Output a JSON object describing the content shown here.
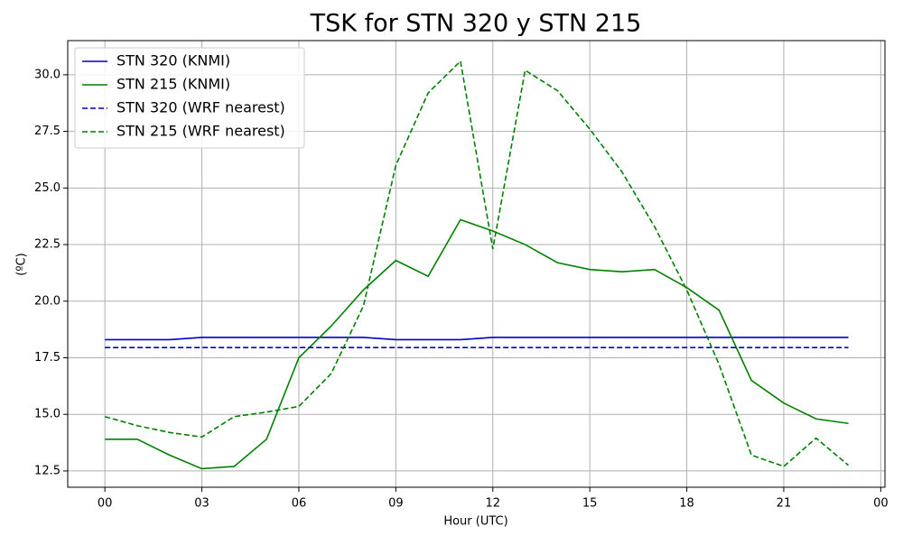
{
  "chart_data": {
    "type": "line",
    "title": "TSK for STN 320 y STN 215",
    "xlabel": "Hour (UTC)",
    "ylabel": "(ºC)",
    "x": [
      0,
      1,
      2,
      3,
      4,
      5,
      6,
      7,
      8,
      9,
      10,
      11,
      12,
      13,
      14,
      15,
      16,
      17,
      18,
      19,
      20,
      21,
      22,
      23
    ],
    "series": [
      {
        "name": "STN 320 (KNMI)",
        "color": "#0000cc",
        "linestyle": "solid",
        "values": [
          18.3,
          18.3,
          18.3,
          18.4,
          18.4,
          18.4,
          18.4,
          18.4,
          18.4,
          18.3,
          18.3,
          18.3,
          18.4,
          18.4,
          18.4,
          18.4,
          18.4,
          18.4,
          18.4,
          18.4,
          18.4,
          18.4,
          18.4,
          18.4
        ]
      },
      {
        "name": "STN 215 (KNMI)",
        "color": "#008000",
        "linestyle": "solid",
        "values": [
          13.9,
          13.9,
          13.2,
          12.6,
          12.7,
          13.9,
          17.5,
          18.9,
          20.5,
          21.8,
          21.1,
          23.6,
          23.1,
          22.5,
          21.7,
          21.4,
          21.3,
          21.4,
          20.6,
          19.6,
          16.5,
          15.5,
          14.8,
          14.6
        ]
      },
      {
        "name": "STN 320 (WRF nearest)",
        "color": "#0000cc",
        "linestyle": "dashed",
        "values": [
          17.95,
          17.95,
          17.95,
          17.95,
          17.95,
          17.95,
          17.95,
          17.95,
          17.95,
          17.95,
          17.95,
          17.95,
          17.95,
          17.95,
          17.95,
          17.95,
          17.95,
          17.95,
          17.95,
          17.95,
          17.95,
          17.95,
          17.95,
          17.95
        ]
      },
      {
        "name": "STN 215 (WRF nearest)",
        "color": "#008000",
        "linestyle": "dashed",
        "values": [
          14.9,
          14.5,
          14.2,
          14.0,
          14.9,
          15.1,
          15.35,
          16.8,
          19.8,
          26.0,
          29.2,
          30.6,
          22.3,
          30.2,
          29.3,
          27.6,
          25.7,
          23.3,
          20.5,
          17.2,
          13.2,
          12.7,
          13.95,
          12.75
        ]
      }
    ],
    "xlim": [
      -1.15,
      24.13
    ],
    "ylim": [
      11.78,
      31.51
    ],
    "xticks": [
      {
        "value": 0,
        "label": "00"
      },
      {
        "value": 3,
        "label": "03"
      },
      {
        "value": 6,
        "label": "06"
      },
      {
        "value": 9,
        "label": "09"
      },
      12,
      15,
      18,
      21,
      {
        "value": 24,
        "label": "00"
      }
    ],
    "yticks": [
      12.5,
      {
        "value": 15,
        "label": "15.0"
      },
      17.5,
      {
        "value": 20,
        "label": "20.0"
      },
      22.5,
      {
        "value": 25,
        "label": "25.0"
      },
      27.5,
      {
        "value": 30,
        "label": "30.0"
      }
    ],
    "grid": true,
    "legend": "upper left"
  }
}
